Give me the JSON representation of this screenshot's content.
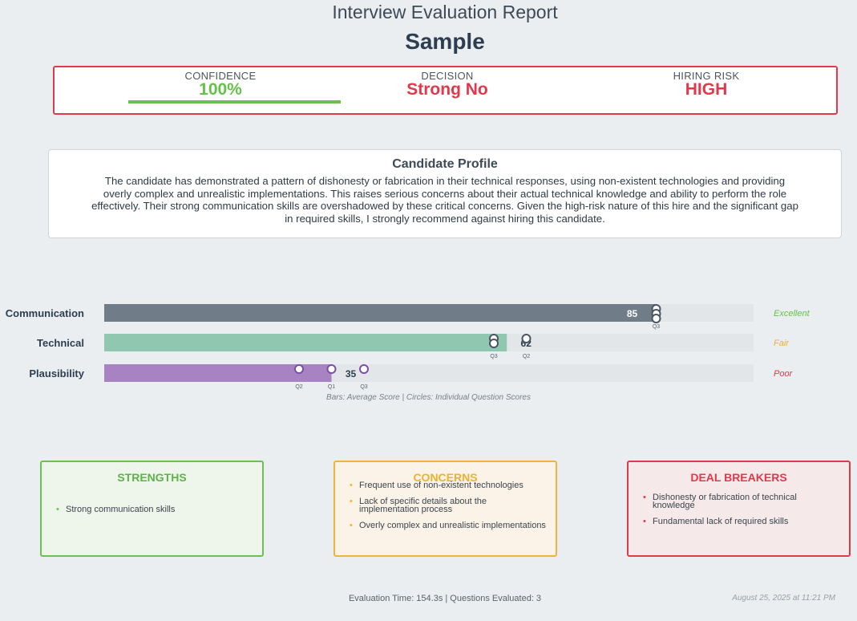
{
  "header": {
    "title": "Interview Evaluation Report",
    "subtitle": "Sample"
  },
  "summary": {
    "confidence_label": "CONFIDENCE",
    "confidence_value": "100%",
    "confidence_fraction": 1.0,
    "decision_label": "DECISION",
    "decision_value": "Strong No",
    "risk_label": "HIRING RISK",
    "risk_value": "HIGH",
    "accent_color": "#e0394b",
    "confidence_color": "#6cc052"
  },
  "profile": {
    "title": "Candidate Profile",
    "text": "The candidate has demonstrated a pattern of dishonesty or fabrication in their technical responses, using non-existent technologies and providing overly complex and unrealistic implementations. This raises serious concerns about their actual technical knowledge and ability to perform the role effectively. Their strong communication skills are overshadowed by these critical concerns. Given the high-risk nature of this hire and the significant gap in required skills, I strongly recommend against hiring this candidate."
  },
  "chart_data": {
    "type": "bar",
    "orientation": "horizontal",
    "xlim": [
      0,
      100
    ],
    "categories": [
      "Communication",
      "Technical",
      "Plausibility"
    ],
    "values": [
      85,
      62,
      35
    ],
    "ratings": [
      "Excellent",
      "Fair",
      "Poor"
    ],
    "bar_colors": [
      "#717c89",
      "#8fc7b0",
      "#a883c4"
    ],
    "rating_colors": [
      "#66c14b",
      "#eab22f",
      "#e0394b"
    ],
    "question_scores": [
      [
        {
          "q": "Q3",
          "score": 85
        },
        {
          "q": "",
          "score": 85
        },
        {
          "q": "",
          "score": 85
        }
      ],
      [
        {
          "q": "Q3",
          "score": 60
        },
        {
          "q": "",
          "score": 60
        },
        {
          "q": "Q2",
          "score": 65
        }
      ],
      [
        {
          "q": "Q2",
          "score": 30
        },
        {
          "q": "Q1",
          "score": 35
        },
        {
          "q": "Q3",
          "score": 40
        }
      ]
    ],
    "note": "Bars: Average Score  |  Circles: Individual Question Scores"
  },
  "cards": {
    "strengths": {
      "title": "STRENGTHS",
      "items": [
        "Strong communication skills"
      ]
    },
    "concerns": {
      "title": "CONCERNS",
      "items": [
        "Frequent use of non-existent technologies",
        "Lack of specific details about the implementation process",
        "Overly complex and unrealistic implementations"
      ]
    },
    "deal_breakers": {
      "title": "DEAL BREAKERS",
      "items": [
        "Dishonesty or fabrication of technical knowledge",
        "Fundamental lack of required skills"
      ]
    }
  },
  "footer": {
    "text": "Evaluation Time: 154.3s | Questions Evaluated: 3",
    "timestamp": "August 25, 2025 at 11:21 PM"
  }
}
